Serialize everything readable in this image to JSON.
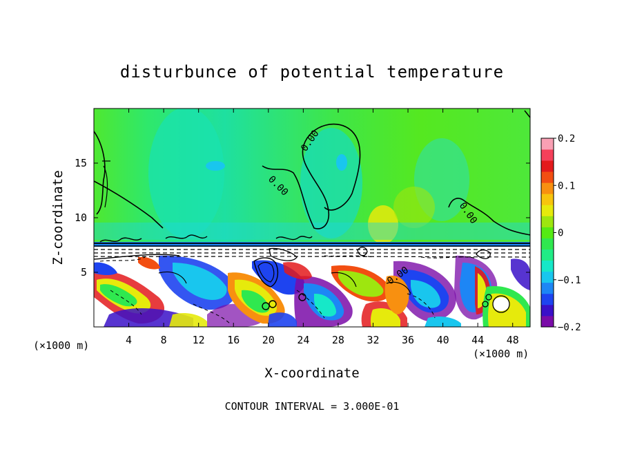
{
  "chart_data": {
    "type": "heatmap",
    "title": "disturbunce of potential temperature",
    "xlabel": "X-coordinate",
    "ylabel": "Z-coordinate",
    "x_unit_left": "(×1000 m)",
    "x_unit_right": "(×1000 m)",
    "xlim": [
      0,
      50
    ],
    "ylim": [
      0,
      20
    ],
    "x_ticks": [
      4,
      8,
      12,
      16,
      20,
      24,
      28,
      32,
      36,
      40,
      44,
      48
    ],
    "x_tick_labels": [
      "4",
      "8",
      "12",
      "16",
      "20",
      "24",
      "28",
      "32",
      "36",
      "40",
      "44",
      "48"
    ],
    "y_ticks": [
      5,
      10,
      15
    ],
    "y_tick_labels": [
      "5",
      "10",
      "15"
    ],
    "colorbar": {
      "range": [
        -0.2,
        0.2
      ],
      "ticks": [
        0.2,
        0.1,
        0,
        -0.1,
        -0.2
      ],
      "tick_labels": [
        "0.2",
        "0.1",
        "0",
        "−0.1",
        "−0.2"
      ],
      "colors": [
        "#7a0ca8",
        "#3a10c8",
        "#1e44f0",
        "#1d86f5",
        "#19c6ee",
        "#16e8c8",
        "#21ec86",
        "#2fe84f",
        "#55ea14",
        "#9ee60f",
        "#e6ea0c",
        "#f7c40d",
        "#f89010",
        "#f24e12",
        "#e31a1c",
        "#f5405a",
        "#f9a0b4"
      ]
    },
    "contour_labels": [
      "0.00",
      "0.00",
      "0.00",
      "0.00"
    ],
    "footer": "CONTOUR INTERVAL = 3.000E-01"
  }
}
